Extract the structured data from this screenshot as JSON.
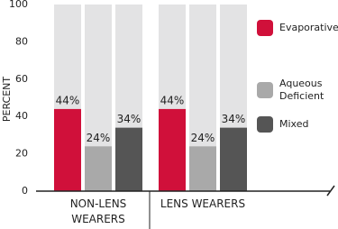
{
  "chart_data": {
    "type": "bar",
    "y_label": "PERCENT",
    "categories": [
      "NON-LENS WEARERS",
      "LENS WEARERS"
    ],
    "series": [
      {
        "name": "Evaporative",
        "color": "#d0103a",
        "values": [
          44,
          44
        ],
        "value_labels": [
          "44%",
          "44%"
        ]
      },
      {
        "name": "Aqueous Deficient",
        "color": "#a9a9a9",
        "values": [
          24,
          24
        ],
        "value_labels": [
          "24%",
          "24%"
        ]
      },
      {
        "name": "Mixed",
        "color": "#555555",
        "values": [
          34,
          34
        ],
        "value_labels": [
          "34%",
          "34%"
        ]
      }
    ],
    "ylim": [
      0,
      100
    ],
    "yticks": [
      0,
      20,
      40,
      60,
      80,
      100
    ]
  }
}
